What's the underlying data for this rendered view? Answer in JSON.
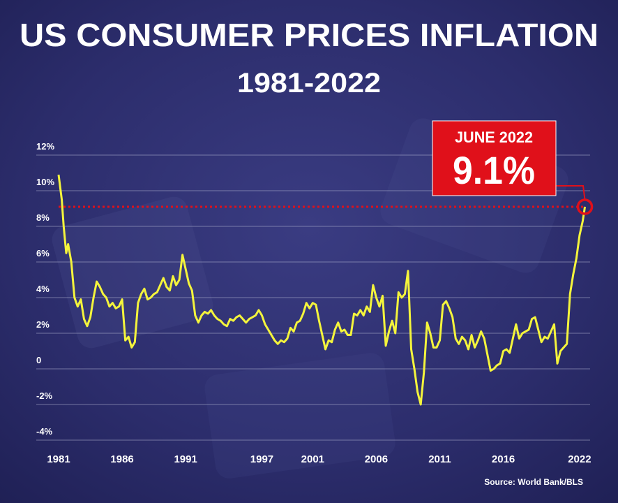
{
  "chart_data": {
    "type": "line",
    "title": "US CONSUMER PRICES INFLATION",
    "subtitle": "1981-2022",
    "source": "Source: World Bank/BLS",
    "annotation": {
      "title": "JUNE 2022",
      "text": "9.1%"
    },
    "color": "#f4f43c",
    "annotation_color": "#e0101a",
    "grid": true,
    "xlim": [
      1981,
      2022.5
    ],
    "ylim": [
      -4,
      12
    ],
    "xticks": [
      1981,
      1986,
      1991,
      1997,
      2001,
      2006,
      2011,
      2016,
      2022
    ],
    "yticks": [
      {
        "value": 12,
        "label": "12%"
      },
      {
        "value": 10,
        "label": "10%"
      },
      {
        "value": 8,
        "label": "8%"
      },
      {
        "value": 6,
        "label": "6%"
      },
      {
        "value": 4,
        "label": "4%"
      },
      {
        "value": 2,
        "label": "2%"
      },
      0,
      {
        "value": -2,
        "label": "-2%"
      },
      {
        "value": -4,
        "label": "-4%"
      }
    ],
    "x": [
      1981.0,
      1981.25,
      1981.4,
      1981.6,
      1981.75,
      1982.0,
      1982.25,
      1982.5,
      1982.75,
      1983.0,
      1983.25,
      1983.5,
      1983.75,
      1984.0,
      1984.25,
      1984.5,
      1984.75,
      1985.0,
      1985.25,
      1985.5,
      1985.75,
      1986.0,
      1986.25,
      1986.5,
      1986.75,
      1987.0,
      1987.25,
      1987.5,
      1987.75,
      1988.0,
      1988.25,
      1988.5,
      1988.75,
      1989.0,
      1989.25,
      1989.5,
      1989.75,
      1990.0,
      1990.25,
      1990.5,
      1990.75,
      1991.0,
      1991.25,
      1991.5,
      1991.75,
      1992.0,
      1992.25,
      1992.5,
      1992.75,
      1993.0,
      1993.25,
      1993.5,
      1993.75,
      1994.0,
      1994.25,
      1994.5,
      1994.75,
      1995.0,
      1995.25,
      1995.5,
      1995.75,
      1996.0,
      1996.25,
      1996.5,
      1996.75,
      1997.0,
      1997.25,
      1997.5,
      1997.75,
      1998.0,
      1998.25,
      1998.5,
      1998.75,
      1999.0,
      1999.25,
      1999.5,
      1999.75,
      2000.0,
      2000.25,
      2000.5,
      2000.75,
      2001.0,
      2001.25,
      2001.5,
      2001.75,
      2002.0,
      2002.25,
      2002.5,
      2002.75,
      2003.0,
      2003.25,
      2003.5,
      2003.75,
      2004.0,
      2004.25,
      2004.5,
      2004.75,
      2005.0,
      2005.25,
      2005.5,
      2005.75,
      2006.0,
      2006.25,
      2006.5,
      2006.75,
      2007.0,
      2007.25,
      2007.5,
      2007.75,
      2008.0,
      2008.25,
      2008.5,
      2008.75,
      2009.0,
      2009.25,
      2009.5,
      2009.75,
      2010.0,
      2010.25,
      2010.5,
      2010.75,
      2011.0,
      2011.25,
      2011.5,
      2011.75,
      2012.0,
      2012.25,
      2012.5,
      2012.75,
      2013.0,
      2013.25,
      2013.5,
      2013.75,
      2014.0,
      2014.25,
      2014.5,
      2014.75,
      2015.0,
      2015.25,
      2015.5,
      2015.75,
      2016.0,
      2016.25,
      2016.5,
      2016.75,
      2017.0,
      2017.25,
      2017.5,
      2017.75,
      2018.0,
      2018.25,
      2018.5,
      2018.75,
      2019.0,
      2019.25,
      2019.5,
      2019.75,
      2020.0,
      2020.25,
      2020.5,
      2020.75,
      2021.0,
      2021.25,
      2021.5,
      2021.75,
      2022.0,
      2022.25,
      2022.42
    ],
    "values": [
      10.9,
      9.5,
      8.0,
      6.5,
      7.0,
      6.0,
      4.0,
      3.5,
      3.9,
      2.8,
      2.4,
      2.9,
      4.0,
      4.9,
      4.6,
      4.2,
      4.0,
      3.5,
      3.7,
      3.4,
      3.5,
      3.9,
      1.6,
      1.8,
      1.2,
      1.5,
      3.7,
      4.2,
      4.5,
      3.9,
      4.0,
      4.2,
      4.3,
      4.7,
      5.1,
      4.6,
      4.4,
      5.2,
      4.7,
      5.0,
      6.4,
      5.6,
      4.8,
      4.4,
      3.0,
      2.6,
      3.0,
      3.2,
      3.1,
      3.3,
      3.0,
      2.8,
      2.7,
      2.5,
      2.4,
      2.8,
      2.7,
      2.9,
      3.0,
      2.8,
      2.6,
      2.8,
      2.9,
      3.0,
      3.3,
      3.0,
      2.5,
      2.2,
      1.9,
      1.6,
      1.4,
      1.6,
      1.5,
      1.7,
      2.3,
      2.1,
      2.6,
      2.7,
      3.1,
      3.7,
      3.4,
      3.7,
      3.6,
      2.7,
      1.9,
      1.1,
      1.6,
      1.5,
      2.2,
      2.6,
      2.1,
      2.2,
      1.9,
      1.9,
      3.1,
      3.0,
      3.3,
      3.0,
      3.5,
      3.2,
      4.7,
      4.0,
      3.5,
      4.1,
      1.3,
      2.1,
      2.7,
      2.0,
      4.3,
      4.0,
      4.2,
      5.5,
      1.1,
      0.0,
      -1.3,
      -2.0,
      -0.2,
      2.6,
      2.0,
      1.2,
      1.2,
      1.6,
      3.6,
      3.8,
      3.4,
      2.9,
      1.7,
      1.4,
      1.8,
      1.6,
      1.1,
      1.9,
      1.2,
      1.6,
      2.1,
      1.7,
      0.8,
      -0.1,
      0.0,
      0.2,
      0.3,
      1.0,
      1.1,
      0.9,
      1.7,
      2.5,
      1.7,
      2.0,
      2.1,
      2.2,
      2.8,
      2.9,
      2.2,
      1.5,
      1.8,
      1.7,
      2.1,
      2.5,
      0.3,
      1.0,
      1.2,
      1.4,
      4.2,
      5.3,
      6.2,
      7.5,
      8.3,
      9.1
    ]
  }
}
